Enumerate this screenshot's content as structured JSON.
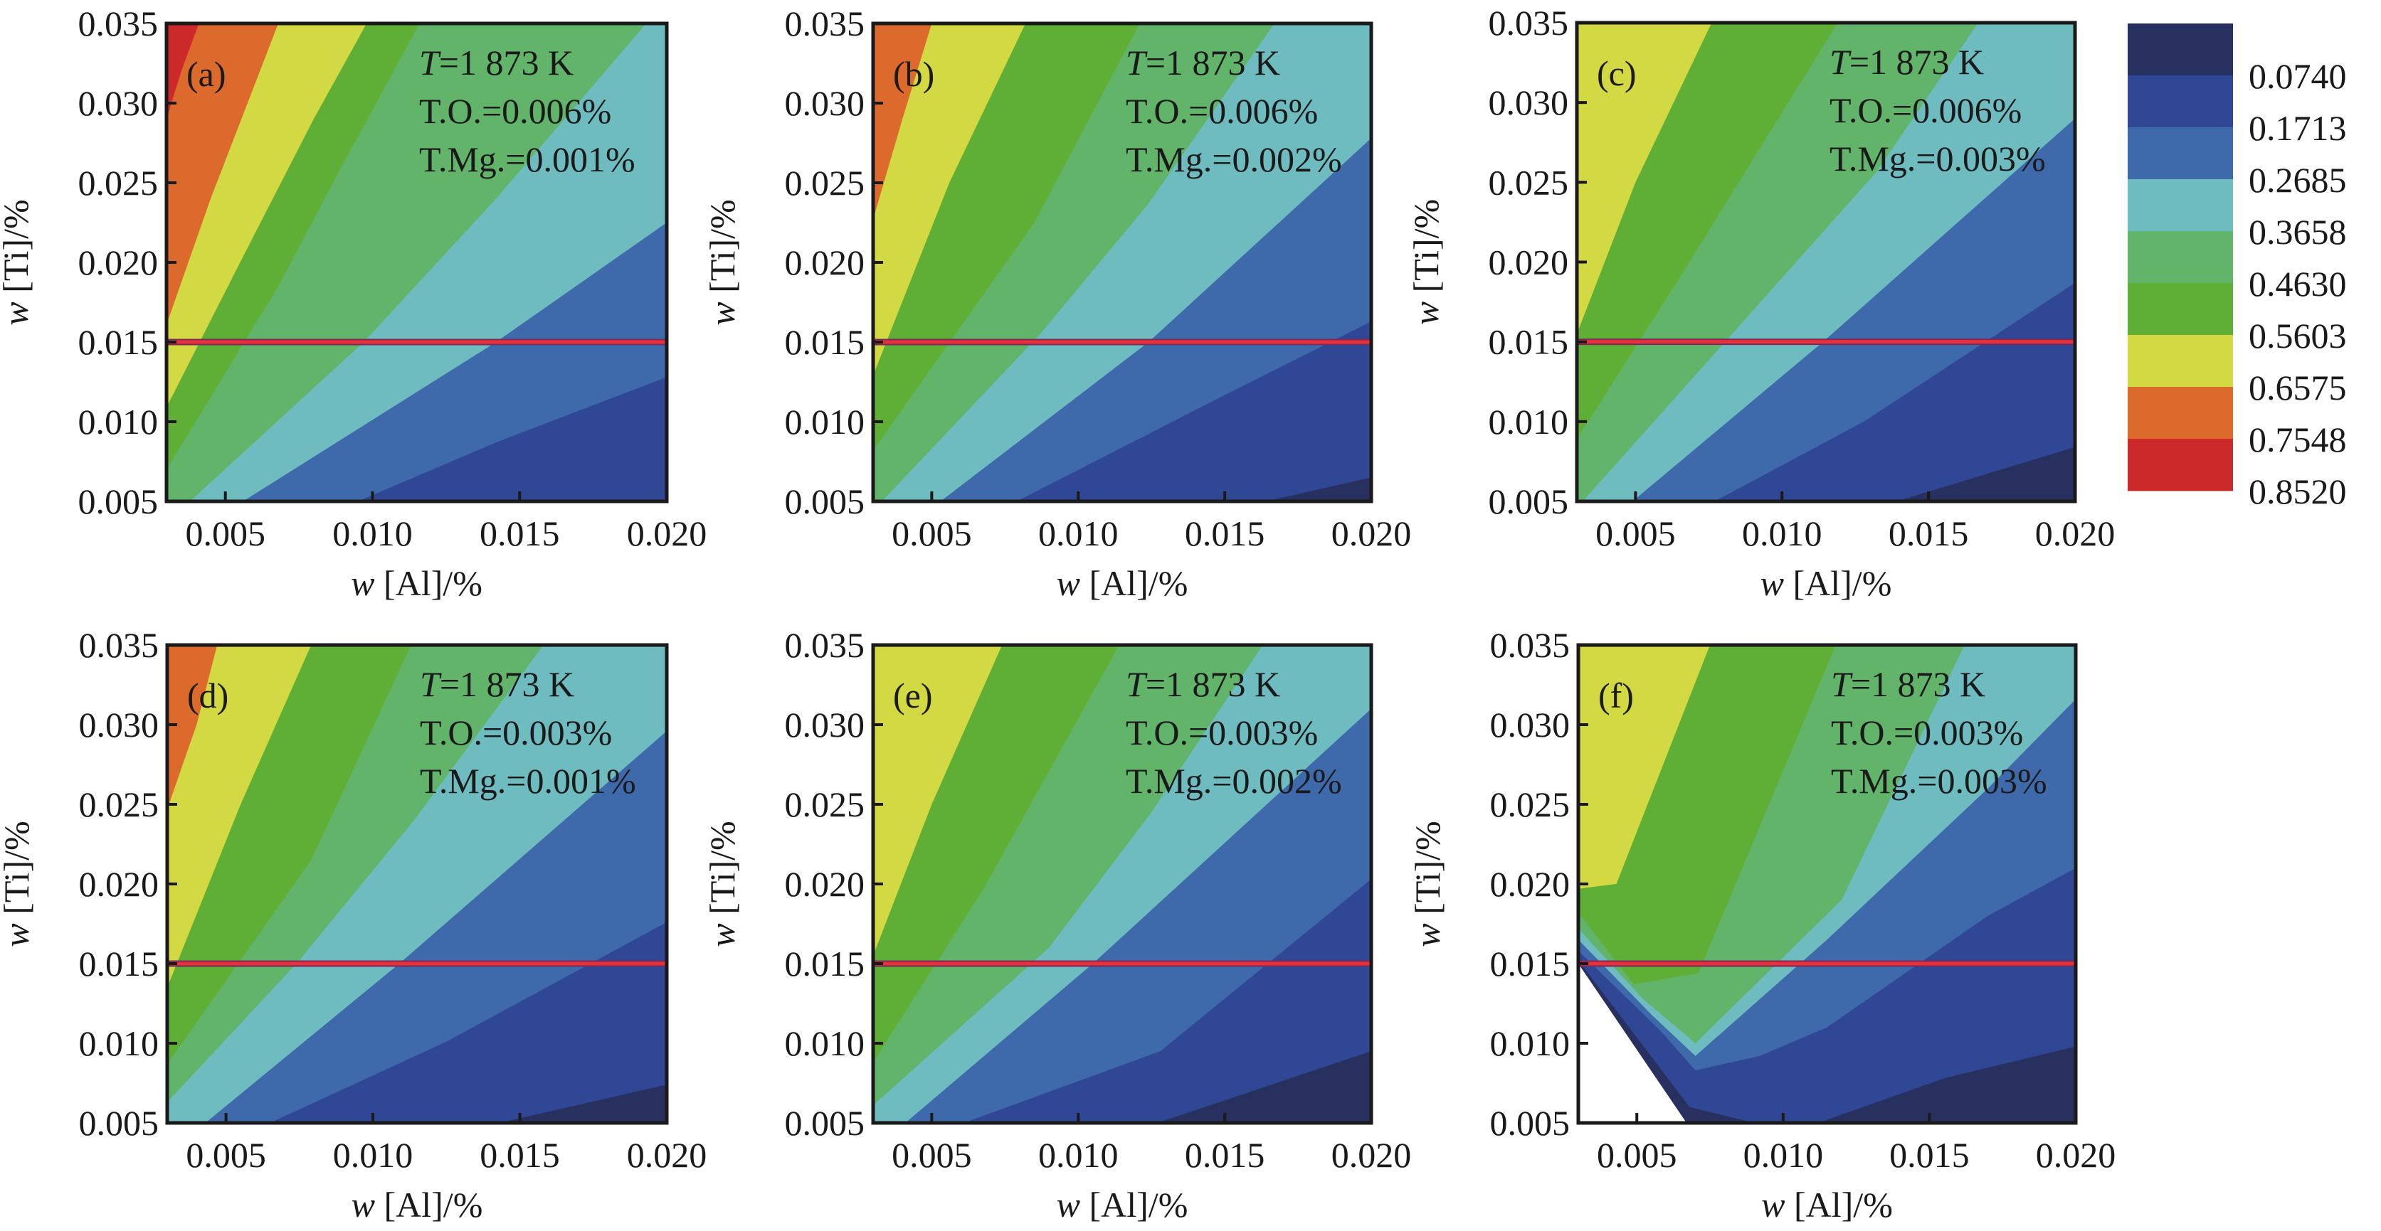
{
  "figure": {
    "annotation_temperature_prefix": "T",
    "annotation_temperature_value": "=1 873 K"
  },
  "colorbar": {
    "labels": [
      "0.0740",
      "0.1713",
      "0.2685",
      "0.3658",
      "0.4630",
      "0.5603",
      "0.6575",
      "0.7548",
      "0.8520"
    ],
    "colors": [
      "#27305e",
      "#2f4794",
      "#3e69ab",
      "#6fbcc0",
      "#62b46a",
      "#5fae35",
      "#d3d942",
      "#dc6a2c",
      "#cc2a2a"
    ]
  },
  "chart_data": [
    {
      "type": "heatmap",
      "id": "a",
      "panel_label": "(a)",
      "xlabel_var": "w",
      "xlabel_rest": " [Al]/%",
      "ylabel_var": "w",
      "ylabel_rest": " [Ti]/%",
      "xlim": [
        0.003,
        0.02
      ],
      "ylim": [
        0.005,
        0.035
      ],
      "xticks": [
        0.005,
        0.01,
        0.015,
        0.02
      ],
      "xtick_labels": [
        "0.005",
        "0.010",
        "0.015",
        "0.020"
      ],
      "yticks": [
        0.005,
        0.01,
        0.015,
        0.02,
        0.025,
        0.03,
        0.035
      ],
      "ytick_labels": [
        "0.005",
        "0.010",
        "0.015",
        "0.020",
        "0.025",
        "0.030",
        "0.035"
      ],
      "annotations": [
        "T.O.=0.006%",
        "T.Mg.=0.001%"
      ],
      "reference_line_y": 0.015,
      "base_level": 8,
      "contours": [
        {
          "level": 7,
          "points": [
            [
              0.003,
              0.0269
            ],
            [
              0.003,
              0.029
            ],
            [
              0.0035,
              0.032
            ],
            [
              0.0041,
              0.035
            ]
          ]
        },
        {
          "level": 6,
          "points": [
            [
              0.003,
              0.0161
            ],
            [
              0.0045,
              0.024
            ],
            [
              0.0068,
              0.035
            ]
          ]
        },
        {
          "level": 5,
          "points": [
            [
              0.003,
              0.0109
            ],
            [
              0.0055,
              0.02
            ],
            [
              0.008,
              0.029
            ],
            [
              0.0098,
              0.035
            ]
          ]
        },
        {
          "level": 4,
          "points": [
            [
              0.003,
              0.007
            ],
            [
              0.0068,
              0.0185
            ],
            [
              0.0088,
              0.0255
            ],
            [
              0.0116,
              0.035
            ]
          ]
        },
        {
          "level": 3,
          "points": [
            [
              0.0038,
              0.005
            ],
            [
              0.0097,
              0.015
            ],
            [
              0.0142,
              0.024
            ],
            [
              0.0193,
              0.035
            ]
          ]
        },
        {
          "level": 2,
          "points": [
            [
              0.0056,
              0.005
            ],
            [
              0.0142,
              0.015
            ],
            [
              0.02,
              0.0225
            ]
          ]
        },
        {
          "level": 1,
          "points": [
            [
              0.0095,
              0.005
            ],
            [
              0.0142,
              0.0087
            ],
            [
              0.02,
              0.0128
            ]
          ]
        }
      ]
    },
    {
      "type": "heatmap",
      "id": "b",
      "panel_label": "(b)",
      "xlabel_var": "w",
      "xlabel_rest": " [Al]/%",
      "ylabel_var": "w",
      "ylabel_rest": " [Ti]/%",
      "xlim": [
        0.003,
        0.02
      ],
      "ylim": [
        0.005,
        0.035
      ],
      "xticks": [
        0.005,
        0.01,
        0.015,
        0.02
      ],
      "xtick_labels": [
        "0.005",
        "0.010",
        "0.015",
        "0.020"
      ],
      "yticks": [
        0.005,
        0.01,
        0.015,
        0.02,
        0.025,
        0.03,
        0.035
      ],
      "ytick_labels": [
        "0.005",
        "0.010",
        "0.015",
        "0.020",
        "0.025",
        "0.030",
        "0.035"
      ],
      "annotations": [
        "T.O.=0.006%",
        "T.Mg.=0.002%"
      ],
      "reference_line_y": 0.015,
      "base_level": 7,
      "contours": [
        {
          "level": 6,
          "points": [
            [
              0.003,
              0.0227
            ],
            [
              0.004,
              0.029
            ],
            [
              0.005,
              0.035
            ]
          ]
        },
        {
          "level": 5,
          "points": [
            [
              0.003,
              0.0129
            ],
            [
              0.0056,
              0.025
            ],
            [
              0.0082,
              0.035
            ]
          ]
        },
        {
          "level": 4,
          "points": [
            [
              0.003,
              0.0082
            ],
            [
              0.0085,
              0.0225
            ],
            [
              0.0121,
              0.035
            ]
          ]
        },
        {
          "level": 3,
          "points": [
            [
              0.0033,
              0.005
            ],
            [
              0.0087,
              0.0155
            ],
            [
              0.0124,
              0.0237
            ],
            [
              0.0167,
              0.035
            ]
          ]
        },
        {
          "level": 2,
          "points": [
            [
              0.0053,
              0.005
            ],
            [
              0.0124,
              0.015
            ],
            [
              0.02,
              0.0278
            ]
          ]
        },
        {
          "level": 1,
          "points": [
            [
              0.0079,
              0.005
            ],
            [
              0.0146,
              0.0113
            ],
            [
              0.02,
              0.0163
            ]
          ]
        },
        {
          "level": 0,
          "points": [
            [
              0.0164,
              0.005
            ],
            [
              0.02,
              0.0065
            ]
          ]
        }
      ]
    },
    {
      "type": "heatmap",
      "id": "c",
      "panel_label": "(c)",
      "xlabel_var": "w",
      "xlabel_rest": " [Al]/%",
      "ylabel_var": "w",
      "ylabel_rest": " [Ti]/%",
      "xlim": [
        0.003,
        0.02
      ],
      "ylim": [
        0.005,
        0.035
      ],
      "xticks": [
        0.005,
        0.01,
        0.015,
        0.02
      ],
      "xtick_labels": [
        "0.005",
        "0.010",
        "0.015",
        "0.020"
      ],
      "yticks": [
        0.005,
        0.01,
        0.015,
        0.02,
        0.025,
        0.03,
        0.035
      ],
      "ytick_labels": [
        "0.005",
        "0.010",
        "0.015",
        "0.020",
        "0.025",
        "0.030",
        "0.035"
      ],
      "annotations": [
        "T.O.=0.006%",
        "T.Mg.=0.003%"
      ],
      "reference_line_y": 0.015,
      "base_level": 6,
      "contours": [
        {
          "level": 5,
          "points": [
            [
              0.003,
              0.0155
            ],
            [
              0.005,
              0.025
            ],
            [
              0.0076,
              0.035
            ]
          ]
        },
        {
          "level": 4,
          "points": [
            [
              0.003,
              0.0089
            ],
            [
              0.0065,
              0.019
            ],
            [
              0.0119,
              0.035
            ]
          ]
        },
        {
          "level": 3,
          "points": [
            [
              0.0032,
              0.005
            ],
            [
              0.0083,
              0.0155
            ],
            [
              0.0132,
              0.0256
            ],
            [
              0.0167,
              0.035
            ]
          ]
        },
        {
          "level": 2,
          "points": [
            [
              0.0049,
              0.005
            ],
            [
              0.0114,
              0.015
            ],
            [
              0.02,
              0.029
            ]
          ]
        },
        {
          "level": 1,
          "points": [
            [
              0.0077,
              0.005
            ],
            [
              0.0128,
              0.01
            ],
            [
              0.02,
              0.0187
            ]
          ]
        },
        {
          "level": 0,
          "points": [
            [
              0.0139,
              0.005
            ],
            [
              0.02,
              0.0084
            ]
          ]
        }
      ]
    },
    {
      "type": "heatmap",
      "id": "d",
      "panel_label": "(d)",
      "xlabel_var": "w",
      "xlabel_rest": " [Al]/%",
      "ylabel_var": "w",
      "ylabel_rest": " [Ti]/%",
      "xlim": [
        0.003,
        0.02
      ],
      "ylim": [
        0.005,
        0.035
      ],
      "xticks": [
        0.005,
        0.01,
        0.015,
        0.02
      ],
      "xtick_labels": [
        "0.005",
        "0.010",
        "0.015",
        "0.020"
      ],
      "yticks": [
        0.005,
        0.01,
        0.015,
        0.02,
        0.025,
        0.03,
        0.035
      ],
      "ytick_labels": [
        "0.005",
        "0.010",
        "0.015",
        "0.020",
        "0.025",
        "0.030",
        "0.035"
      ],
      "annotations": [
        "T.O.=0.003%",
        "T.Mg.=0.001%"
      ],
      "reference_line_y": 0.015,
      "base_level": 7,
      "contours": [
        {
          "level": 6,
          "points": [
            [
              0.003,
              0.0247
            ],
            [
              0.004,
              0.03
            ],
            [
              0.0047,
              0.035
            ]
          ]
        },
        {
          "level": 5,
          "points": [
            [
              0.003,
              0.0135
            ],
            [
              0.0055,
              0.025
            ],
            [
              0.0079,
              0.035
            ]
          ]
        },
        {
          "level": 4,
          "points": [
            [
              0.003,
              0.0087
            ],
            [
              0.0079,
              0.0215
            ],
            [
              0.0113,
              0.035
            ]
          ]
        },
        {
          "level": 3,
          "points": [
            [
              0.003,
              0.0063
            ],
            [
              0.0074,
              0.015
            ],
            [
              0.0114,
              0.024
            ],
            [
              0.0158,
              0.035
            ]
          ]
        },
        {
          "level": 2,
          "points": [
            [
              0.0043,
              0.005
            ],
            [
              0.0109,
              0.015
            ],
            [
              0.02,
              0.0296
            ]
          ]
        },
        {
          "level": 1,
          "points": [
            [
              0.0065,
              0.005
            ],
            [
              0.0125,
              0.0101
            ],
            [
              0.02,
              0.0176
            ]
          ]
        },
        {
          "level": 0,
          "points": [
            [
              0.0143,
              0.005
            ],
            [
              0.02,
              0.0074
            ]
          ]
        }
      ]
    },
    {
      "type": "heatmap",
      "id": "e",
      "panel_label": "(e)",
      "xlabel_var": "w",
      "xlabel_rest": " [Al]/%",
      "ylabel_var": "w",
      "ylabel_rest": " [Ti]/%",
      "xlim": [
        0.003,
        0.02
      ],
      "ylim": [
        0.005,
        0.035
      ],
      "xticks": [
        0.005,
        0.01,
        0.015,
        0.02
      ],
      "xtick_labels": [
        "0.005",
        "0.010",
        "0.015",
        "0.020"
      ],
      "yticks": [
        0.005,
        0.01,
        0.015,
        0.02,
        0.025,
        0.03,
        0.035
      ],
      "ytick_labels": [
        "0.005",
        "0.010",
        "0.015",
        "0.020",
        "0.025",
        "0.030",
        "0.035"
      ],
      "annotations": [
        "T.O.=0.003%",
        "T.Mg.=0.002%"
      ],
      "reference_line_y": 0.015,
      "base_level": 6,
      "contours": [
        {
          "level": 5,
          "points": [
            [
              0.003,
              0.0155
            ],
            [
              0.005,
              0.025
            ],
            [
              0.0074,
              0.035
            ]
          ]
        },
        {
          "level": 4,
          "points": [
            [
              0.003,
              0.0088
            ],
            [
              0.0068,
              0.0198
            ],
            [
              0.0114,
              0.035
            ]
          ]
        },
        {
          "level": 3,
          "points": [
            [
              0.003,
              0.0061
            ],
            [
              0.009,
              0.016
            ],
            [
              0.0125,
              0.0245
            ],
            [
              0.0163,
              0.035
            ]
          ]
        },
        {
          "level": 2,
          "points": [
            [
              0.0041,
              0.005
            ],
            [
              0.0105,
              0.015
            ],
            [
              0.02,
              0.031
            ]
          ]
        },
        {
          "level": 1,
          "points": [
            [
              0.0061,
              0.005
            ],
            [
              0.0128,
              0.0095
            ],
            [
              0.02,
              0.0203
            ]
          ]
        },
        {
          "level": 0,
          "points": [
            [
              0.0127,
              0.005
            ],
            [
              0.02,
              0.0095
            ]
          ]
        }
      ]
    },
    {
      "type": "heatmap",
      "id": "f",
      "panel_label": "(f)",
      "xlabel_var": "w",
      "xlabel_rest": " [Al]/%",
      "ylabel_var": "w",
      "ylabel_rest": " [Ti]/%",
      "xlim": [
        0.003,
        0.02
      ],
      "ylim": [
        0.005,
        0.035
      ],
      "xticks": [
        0.005,
        0.01,
        0.015,
        0.02
      ],
      "xtick_labels": [
        "0.005",
        "0.010",
        "0.015",
        "0.020"
      ],
      "yticks": [
        0.005,
        0.01,
        0.015,
        0.02,
        0.025,
        0.03,
        0.035
      ],
      "ytick_labels": [
        "0.005",
        "0.010",
        "0.015",
        "0.020",
        "0.025",
        "0.030",
        "0.035"
      ],
      "annotations": [
        "T.O.=0.003%",
        "T.Mg.=0.003%"
      ],
      "reference_line_y": 0.015,
      "base_level": 6,
      "regions": [
        {
          "level": 5,
          "points": [
            [
              0.003,
              0.0197
            ],
            [
              0.0043,
              0.02
            ],
            [
              0.0075,
              0.035
            ],
            [
              0.02,
              0.035
            ],
            [
              0.02,
              0.005
            ],
            [
              0.003,
              0.005
            ]
          ]
        },
        {
          "level": 4,
          "points": [
            [
              0.003,
              0.0182
            ],
            [
              0.0049,
              0.0137
            ],
            [
              0.0071,
              0.0144
            ],
            [
              0.0118,
              0.035
            ],
            [
              0.02,
              0.035
            ],
            [
              0.02,
              0.005
            ],
            [
              0.003,
              0.005
            ]
          ]
        },
        {
          "level": 3,
          "points": [
            [
              0.003,
              0.0172
            ],
            [
              0.0052,
              0.0128
            ],
            [
              0.007,
              0.01
            ],
            [
              0.012,
              0.019
            ],
            [
              0.0162,
              0.035
            ],
            [
              0.02,
              0.035
            ],
            [
              0.02,
              0.005
            ],
            [
              0.003,
              0.005
            ]
          ]
        },
        {
          "level": 2,
          "points": [
            [
              0.003,
              0.0165
            ],
            [
              0.0055,
              0.0118
            ],
            [
              0.007,
              0.0092
            ],
            [
              0.0115,
              0.0165
            ],
            [
              0.017,
              0.026
            ],
            [
              0.02,
              0.0316
            ],
            [
              0.02,
              0.005
            ],
            [
              0.003,
              0.005
            ]
          ]
        },
        {
          "level": 1,
          "points": [
            [
              0.003,
              0.0158
            ],
            [
              0.0058,
              0.0108
            ],
            [
              0.007,
              0.0083
            ],
            [
              0.0092,
              0.0092
            ],
            [
              0.0115,
              0.011
            ],
            [
              0.017,
              0.018
            ],
            [
              0.02,
              0.021
            ],
            [
              0.02,
              0.005
            ],
            [
              0.003,
              0.005
            ]
          ]
        },
        {
          "level": 0,
          "points": [
            [
              0.003,
              0.0152
            ],
            [
              0.0068,
              0.006
            ],
            [
              0.0088,
              0.0051
            ],
            [
              0.0112,
              0.005
            ],
            [
              0.0155,
              0.0078
            ],
            [
              0.02,
              0.0098
            ],
            [
              0.02,
              0.005
            ],
            [
              0.003,
              0.005
            ]
          ]
        },
        {
          "level": -1,
          "points": [
            [
              0.003,
              0.015
            ],
            [
              0.0067,
              0.005
            ],
            [
              0.003,
              0.005
            ]
          ]
        }
      ]
    }
  ]
}
